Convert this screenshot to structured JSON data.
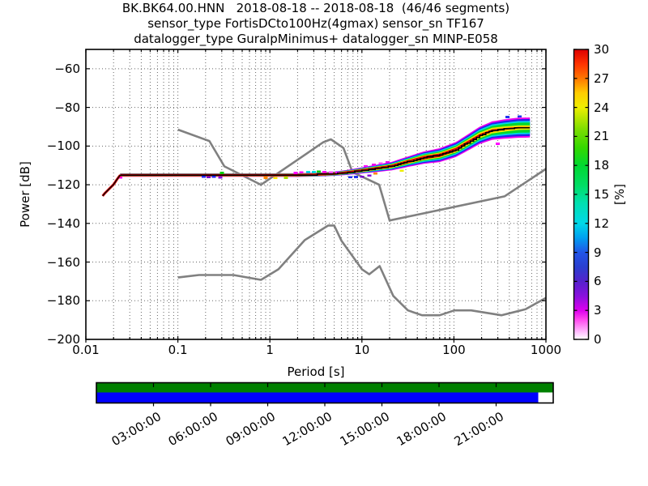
{
  "header": {
    "line1": "BK.BK64.00.HNN   2018-08-18 -- 2018-08-18  (46/46 segments)",
    "line2": "sensor_type FortisDCto100Hz(4gmax) sensor_sn TF167",
    "line3": "datalogger_type GuralpMinimus+ datalogger_sn MINP-E058"
  },
  "axes": {
    "xlabel": "Period [s]",
    "ylabel": "Power [dB]",
    "x_tick_labels": [
      "0.01",
      "0.1",
      "1",
      "10",
      "100",
      "1000"
    ],
    "y_tick_labels": [
      "−200",
      "−180",
      "−160",
      "−140",
      "−120",
      "−100",
      "−80",
      "−60"
    ]
  },
  "colorbar": {
    "label": "[%]",
    "tick_labels": [
      "0",
      "3",
      "6",
      "9",
      "12",
      "15",
      "18",
      "21",
      "24",
      "27",
      "30"
    ],
    "min": 0,
    "max": 30,
    "gradient": [
      [
        0.0,
        "#ffffff"
      ],
      [
        0.02,
        "#ffccff"
      ],
      [
        0.07,
        "#ff44ee"
      ],
      [
        0.1,
        "#dd00ee"
      ],
      [
        0.15,
        "#8811dd"
      ],
      [
        0.2,
        "#5522cc"
      ],
      [
        0.25,
        "#2a3fd0"
      ],
      [
        0.3,
        "#2255e8"
      ],
      [
        0.35,
        "#00a0f0"
      ],
      [
        0.4,
        "#00d8e8"
      ],
      [
        0.47,
        "#00e0b0"
      ],
      [
        0.53,
        "#00dd66"
      ],
      [
        0.6,
        "#00d830"
      ],
      [
        0.66,
        "#33d800"
      ],
      [
        0.72,
        "#77dd00"
      ],
      [
        0.8,
        "#eeee00"
      ],
      [
        0.85,
        "#ffcc00"
      ],
      [
        0.9,
        "#ff7700"
      ],
      [
        0.95,
        "#ff3300"
      ],
      [
        1.0,
        "#dd0000"
      ]
    ]
  },
  "chart_data": {
    "type": "heatmap",
    "title": "BK.BK64.00.HNN 2018-08-18 -- 2018-08-18 (46/46 segments) | sensor_type FortisDCto100Hz(4gmax) sensor_sn TF167 | datalogger_type GuralpMinimus+ datalogger_sn MINP-E058",
    "xlabel": "Period [s]",
    "ylabel": "Power [dB]",
    "x_scale": "log",
    "xlim": [
      0.01,
      1000
    ],
    "ylim": [
      -200,
      -50
    ],
    "x_ticks": [
      0.01,
      0.1,
      1,
      10,
      100,
      1000
    ],
    "y_ticks": [
      -200,
      -180,
      -160,
      -140,
      -120,
      -100,
      -80,
      -60
    ],
    "grid": true,
    "colorbar_ticks": [
      0,
      3,
      6,
      9,
      12,
      15,
      18,
      21,
      24,
      27,
      30
    ],
    "colorbar_label": "[%]",
    "legend": "none",
    "noise_models": {
      "color": "#808080",
      "nhnm": [
        [
          0.1,
          -91.5
        ],
        [
          0.22,
          -97.4
        ],
        [
          0.32,
          -110.5
        ],
        [
          0.8,
          -120
        ],
        [
          3.8,
          -98
        ],
        [
          4.6,
          -96.5
        ],
        [
          6.3,
          -101
        ],
        [
          7.9,
          -113.5
        ],
        [
          15.4,
          -120
        ],
        [
          20,
          -138.5
        ],
        [
          354.8,
          -126
        ],
        [
          1000,
          -111.8
        ]
      ],
      "nlnm": [
        [
          0.1,
          -168
        ],
        [
          0.17,
          -166.7
        ],
        [
          0.4,
          -166.7
        ],
        [
          0.8,
          -169.2
        ],
        [
          1.24,
          -163.7
        ],
        [
          2.4,
          -148.6
        ],
        [
          4.3,
          -141.1
        ],
        [
          5,
          -141.1
        ],
        [
          6,
          -149
        ],
        [
          10,
          -163.7
        ],
        [
          12,
          -166.3
        ],
        [
          15.6,
          -162.1
        ],
        [
          21.9,
          -177.5
        ],
        [
          31.6,
          -185
        ],
        [
          45,
          -187.5
        ],
        [
          70,
          -187.5
        ],
        [
          101,
          -185
        ],
        [
          154,
          -185
        ],
        [
          328,
          -187.5
        ],
        [
          600,
          -184.4
        ],
        [
          1000,
          -178.5
        ]
      ]
    },
    "psd_tail": [
      [
        0.0152,
        -125.8
      ],
      [
        0.016,
        -124.5
      ],
      [
        0.0173,
        -122.9
      ],
      [
        0.0185,
        -121.5
      ],
      [
        0.0199,
        -120.0
      ],
      [
        0.0208,
        -118.7
      ],
      [
        0.0216,
        -117.5
      ],
      [
        0.0226,
        -116.2
      ],
      [
        0.0236,
        -115.0
      ]
    ],
    "psd_mode": {
      "x": [
        0.0236,
        1,
        2,
        3,
        5,
        7,
        10,
        14,
        21,
        31,
        47,
        70,
        105,
        140,
        190,
        260,
        350,
        500,
        670
      ],
      "db": [
        -115.0,
        -115.0,
        -115.0,
        -114.8,
        -114.3,
        -113.6,
        -112.6,
        -111.6,
        -110.4,
        -108.2,
        -106.0,
        -104.7,
        -101.8,
        -98.3,
        -94.5,
        -92.0,
        -91.2,
        -90.5,
        -90.4
      ]
    },
    "band_layers": [
      {
        "name": "magenta",
        "color": "#ee00ee",
        "half_db": [
          0.9,
          0.9,
          0.95,
          1.0,
          1.1,
          1.3,
          1.6,
          1.9,
          2.2,
          2.7,
          3.2,
          3.6,
          3.9,
          4.2,
          4.5,
          4.8,
          5.0,
          5.2,
          5.2
        ]
      },
      {
        "name": "blue",
        "color": "#2222ee",
        "half_db": [
          0.8,
          0.8,
          0.85,
          0.9,
          1.0,
          1.1,
          1.3,
          1.6,
          1.8,
          2.2,
          2.7,
          3.0,
          3.3,
          3.5,
          3.8,
          4.0,
          4.2,
          4.4,
          4.4
        ]
      },
      {
        "name": "cyan",
        "color": "#00d8e8",
        "half_db": [
          0.75,
          0.75,
          0.78,
          0.8,
          0.9,
          0.95,
          1.1,
          1.3,
          1.5,
          1.8,
          2.2,
          2.4,
          2.6,
          2.8,
          3.0,
          3.2,
          3.3,
          3.4,
          3.4
        ]
      },
      {
        "name": "green",
        "color": "#00d830",
        "half_db": [
          0.7,
          0.7,
          0.72,
          0.74,
          0.8,
          0.85,
          0.95,
          1.05,
          1.2,
          1.45,
          1.7,
          1.9,
          2.0,
          2.2,
          2.3,
          2.4,
          2.5,
          2.6,
          2.6
        ]
      },
      {
        "name": "yellow",
        "color": "#f0e800",
        "half_db": [
          0.65,
          0.65,
          0.66,
          0.68,
          0.7,
          0.72,
          0.78,
          0.85,
          0.95,
          1.1,
          1.25,
          1.35,
          1.45,
          1.5,
          1.5,
          1.45,
          1.35,
          1.2,
          1.1
        ]
      },
      {
        "name": "red",
        "color": "#e00000",
        "half_db": [
          0.6,
          0.6,
          0.6,
          0.6,
          0.6,
          0.61,
          0.63,
          0.66,
          0.7,
          0.78,
          0.84,
          0.88,
          0.9,
          0.85,
          0.72,
          0.6,
          0.5,
          0.4,
          0.3
        ]
      }
    ],
    "speckles": [
      [
        0.0236,
        -116.3,
        "#ff00ff"
      ],
      [
        0.19,
        -115.9,
        "#2222ee"
      ],
      [
        0.215,
        -116.1,
        "#7711cc"
      ],
      [
        0.245,
        -115.9,
        "#2222ee"
      ],
      [
        0.29,
        -116.2,
        "#8811dd"
      ],
      [
        0.3,
        -113.9,
        "#00cc00"
      ],
      [
        0.9,
        -116.4,
        "#ff8800"
      ],
      [
        1.15,
        -116.5,
        "#ffee00"
      ],
      [
        1.5,
        -116.4,
        "#aadd00"
      ],
      [
        1.9,
        -113.9,
        "#ff00ff"
      ],
      [
        2.2,
        -113.6,
        "#ff00ff"
      ],
      [
        2.6,
        -113.4,
        "#00e0e0"
      ],
      [
        3.0,
        -113.3,
        "#00e0e0"
      ],
      [
        3.4,
        -113.2,
        "#00cc00"
      ],
      [
        3.9,
        -113.4,
        "#ff00ff"
      ],
      [
        4.6,
        -113.6,
        "#ff44ff"
      ],
      [
        5.4,
        -113.8,
        "#ee00ee"
      ],
      [
        7.5,
        -116.1,
        "#2233ee"
      ],
      [
        8.6,
        -116.0,
        "#2233ee"
      ],
      [
        10,
        -115.9,
        "#7711cc"
      ],
      [
        12,
        -115.2,
        "#8811dd"
      ],
      [
        11,
        -110.4,
        "#ff00ff"
      ],
      [
        13.5,
        -109.7,
        "#ee00ee"
      ],
      [
        16,
        -109.0,
        "#ff44ff"
      ],
      [
        19,
        -108.4,
        "#ee00ee"
      ],
      [
        14,
        -114.2,
        "#ff8800"
      ],
      [
        27,
        -112.8,
        "#eeee00"
      ],
      [
        300,
        -98.8,
        "#ff00ff"
      ],
      [
        380,
        -85.0,
        "#2233ee"
      ],
      [
        520,
        -84.6,
        "#2233ee"
      ]
    ],
    "timeline": {
      "total_hours": 24,
      "tick_hours": [
        3,
        6,
        9,
        12,
        15,
        18,
        21
      ],
      "tick_labels": [
        "03:00:00",
        "06:00:00",
        "09:00:00",
        "12:00:00",
        "15:00:00",
        "18:00:00",
        "21:00:00"
      ],
      "rows": [
        {
          "name": "coverage-row-top",
          "color": "#008000",
          "segments": [
            [
              0,
              24
            ]
          ]
        },
        {
          "name": "coverage-row-bottom",
          "color": "#0000ff",
          "segments": [
            [
              0,
              23.22
            ]
          ]
        }
      ]
    }
  }
}
